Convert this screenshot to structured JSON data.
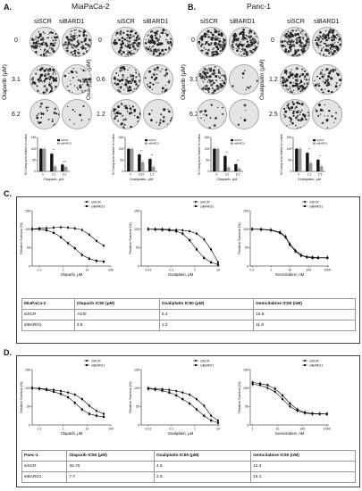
{
  "panelA": {
    "letter": "A.",
    "title": "MiaPaCa-2",
    "col1": "siSCR",
    "col2": "siBARD1",
    "olaparib_axis": "Olaparib (μM)",
    "oxaliplatin_axis": "Oxaliplatin (μM)",
    "olaparib_doses": [
      "0",
      "3.1",
      "6.2"
    ],
    "oxaliplatin_doses": [
      "0",
      "0.6",
      "1.2"
    ]
  },
  "panelB": {
    "letter": "B.",
    "title": "Panc-1",
    "col1": "siSCR",
    "col2": "siBARD1",
    "olaparib_axis": "Olaparib (μM)",
    "oxaliplatin_axis": "Oxaliplatin (μM)",
    "olaparib_doses": [
      "0",
      "3.1",
      "6.2"
    ],
    "oxaliplatin_doses": [
      "0",
      "1.2",
      "2.5"
    ]
  },
  "barcharts": {
    "ylabel": "% Colony area relative to control",
    "legend": [
      "siSCR",
      "siBARD1"
    ],
    "a1_xlabel": "Olaparib, μM",
    "a1_ticks": [
      "0",
      "3.1",
      "6.2"
    ],
    "a1_stars": [
      "",
      "**",
      "n.s"
    ],
    "a2_xlabel": "Oxaliplatin, μM",
    "a2_ticks": [
      "0",
      "0.62",
      "1.2"
    ],
    "a2_stars": [
      "",
      "**",
      "**"
    ],
    "b1_xlabel": "Olaparib, μM",
    "b1_ticks": [
      "0",
      "3.1",
      "6.2"
    ],
    "b1_stars": [
      "",
      "**",
      "**"
    ],
    "b2_xlabel": "Oxaliplatin, μM",
    "b2_ticks": [
      "0",
      "1.2",
      "2.5"
    ],
    "b2_stars": [
      "",
      "**",
      "**"
    ],
    "yticks": [
      "0",
      "50",
      "100",
      "150"
    ]
  },
  "panelC": {
    "letter": "C.",
    "ylabel": "Relative Survival (%)",
    "legend": [
      "siSCR",
      "siBARD1"
    ],
    "x1": "Olaparib, μM",
    "x2": "Oxaliplatin, μM",
    "x3": "Gemcitabine, nM",
    "x1_ticks": [
      "0.1",
      "1",
      "10",
      "100"
    ],
    "x2_ticks": [
      "0.01",
      "0.1",
      "1",
      "10"
    ],
    "x3_ticks": [
      "0.1",
      "1",
      "10",
      "100",
      "1000"
    ],
    "yticks": [
      "0",
      "50",
      "100",
      "150"
    ],
    "table": {
      "headers": [
        "MiaPaCa-2",
        "Olaparib IC50 (μM)",
        "Oxaliplatin IC50 (μM)",
        "Gemcitabine IC50 (nM)"
      ],
      "rows": [
        [
          "siSCR",
          ">100",
          "5.4",
          "10.6"
        ],
        [
          "siBARD1",
          "3.8",
          "1.2",
          "11.8"
        ]
      ]
    }
  },
  "panelD": {
    "letter": "D.",
    "ylabel": "Relative Survival (%)",
    "legend": [
      "siSCR",
      "siBARD1"
    ],
    "x1": "Olaparib, μM",
    "x2": "Oxaliplatin, μM",
    "x3": "Gemcitabine, nM",
    "x1_ticks": [
      "0.1",
      "1",
      "10",
      "100"
    ],
    "x2_ticks": [
      "0.01",
      "0.1",
      "1",
      "10"
    ],
    "x3_ticks": [
      "1",
      "10",
      "100",
      "1000"
    ],
    "yticks": [
      "0",
      "50",
      "100",
      "150"
    ],
    "table": {
      "headers": [
        "Panc-1",
        "Olaparib IC50 (μM)",
        "Oxaliplatin IC50 (μM)",
        "Gemcitabine IC50 (nM)"
      ],
      "rows": [
        [
          "siSCR",
          "36.75",
          "4.5",
          "12.3"
        ],
        [
          "siBARD1",
          "7.7",
          "2.5",
          "16.1"
        ]
      ]
    }
  },
  "chart_data": [
    {
      "type": "bar",
      "categories": [
        "0",
        "3.1",
        "6.2"
      ],
      "xlabel": "Olaparib, μM",
      "ylabel": "% Colony area relative to control",
      "ylim": [
        0,
        150
      ],
      "series": [
        {
          "name": "siSCR",
          "values": [
            100,
            78,
            30
          ]
        },
        {
          "name": "siBARD1",
          "values": [
            100,
            22,
            20
          ]
        }
      ]
    },
    {
      "type": "bar",
      "categories": [
        "0",
        "0.62",
        "1.2"
      ],
      "xlabel": "Oxaliplatin, μM",
      "ylabel": "% Colony area relative to control",
      "ylim": [
        0,
        150
      ],
      "series": [
        {
          "name": "siSCR",
          "values": [
            100,
            75,
            55
          ]
        },
        {
          "name": "siBARD1",
          "values": [
            100,
            40,
            20
          ]
        }
      ]
    },
    {
      "type": "bar",
      "categories": [
        "0",
        "3.1",
        "6.2"
      ],
      "xlabel": "Olaparib, μM",
      "ylabel": "% Colony area relative to control",
      "ylim": [
        0,
        150
      ],
      "series": [
        {
          "name": "siSCR",
          "values": [
            100,
            68,
            32
          ]
        },
        {
          "name": "siBARD1",
          "values": [
            100,
            18,
            12
          ]
        }
      ]
    },
    {
      "type": "bar",
      "categories": [
        "0",
        "1.2",
        "2.5"
      ],
      "xlabel": "Oxaliplatin, μM",
      "ylabel": "% Colony area relative to control",
      "ylim": [
        0,
        150
      ],
      "series": [
        {
          "name": "siSCR",
          "values": [
            100,
            82,
            52
          ]
        },
        {
          "name": "siBARD1",
          "values": [
            100,
            36,
            22
          ]
        }
      ]
    },
    {
      "type": "line",
      "xlabel": "Olaparib, μM",
      "ylabel": "Relative Survival (%)",
      "ylim": [
        0,
        150
      ],
      "xlim": [
        0.05,
        100
      ],
      "series": [
        {
          "name": "siSCR",
          "x": [
            0.05,
            0.1,
            0.2,
            0.4,
            0.8,
            1.6,
            3.1,
            6.2,
            12.5,
            25,
            50
          ],
          "y": [
            100,
            102,
            103,
            104,
            105,
            104,
            102,
            98,
            85,
            68,
            55
          ]
        },
        {
          "name": "siBARD1",
          "x": [
            0.05,
            0.1,
            0.2,
            0.4,
            0.8,
            1.6,
            3.1,
            6.2,
            12.5,
            25,
            50
          ],
          "y": [
            100,
            100,
            97,
            90,
            78,
            62,
            48,
            30,
            20,
            14,
            12
          ]
        }
      ]
    },
    {
      "type": "line",
      "xlabel": "Oxaliplatin, μM",
      "ylabel": "Relative Survival (%)",
      "ylim": [
        0,
        150
      ],
      "xlim": [
        0.005,
        12
      ],
      "series": [
        {
          "name": "siSCR",
          "x": [
            0.01,
            0.02,
            0.04,
            0.08,
            0.16,
            0.3,
            0.6,
            1.2,
            2.5,
            5,
            10
          ],
          "y": [
            100,
            100,
            100,
            99,
            98,
            97,
            94,
            88,
            72,
            45,
            10
          ]
        },
        {
          "name": "siBARD1",
          "x": [
            0.01,
            0.02,
            0.04,
            0.08,
            0.16,
            0.3,
            0.6,
            1.2,
            2.5,
            5,
            10
          ],
          "y": [
            100,
            99,
            98,
            97,
            94,
            88,
            70,
            45,
            22,
            10,
            4
          ]
        }
      ]
    },
    {
      "type": "line",
      "xlabel": "Gemcitabine, nM",
      "ylabel": "Relative Survival (%)",
      "ylim": [
        0,
        150
      ],
      "xlim": [
        0.08,
        1200
      ],
      "series": [
        {
          "name": "siSCR",
          "x": [
            0.1,
            0.3,
            1,
            3,
            6,
            10,
            20,
            40,
            80,
            160,
            320,
            1000
          ],
          "y": [
            100,
            100,
            98,
            92,
            80,
            60,
            42,
            30,
            25,
            24,
            23,
            23
          ]
        },
        {
          "name": "siBARD1",
          "x": [
            0.1,
            0.3,
            1,
            3,
            6,
            10,
            20,
            40,
            80,
            160,
            320,
            1000
          ],
          "y": [
            100,
            99,
            97,
            90,
            78,
            58,
            40,
            28,
            24,
            22,
            22,
            22
          ]
        }
      ]
    },
    {
      "type": "line",
      "xlabel": "Olaparib, μM",
      "ylabel": "Relative Survival (%)",
      "ylim": [
        0,
        150
      ],
      "xlim": [
        0.05,
        100
      ],
      "series": [
        {
          "name": "siSCR",
          "x": [
            0.05,
            0.1,
            0.2,
            0.4,
            0.8,
            1.6,
            3.1,
            6.2,
            12.5,
            25,
            50
          ],
          "y": [
            100,
            99,
            97,
            95,
            92,
            88,
            82,
            70,
            52,
            38,
            30
          ]
        },
        {
          "name": "siBARD1",
          "x": [
            0.05,
            0.1,
            0.2,
            0.4,
            0.8,
            1.6,
            3.1,
            6.2,
            12.5,
            25,
            50
          ],
          "y": [
            100,
            98,
            95,
            90,
            84,
            75,
            60,
            42,
            30,
            25,
            22
          ]
        }
      ]
    },
    {
      "type": "line",
      "xlabel": "Oxaliplatin, μM",
      "ylabel": "Relative Survival (%)",
      "ylim": [
        0,
        150
      ],
      "xlim": [
        0.005,
        12
      ],
      "series": [
        {
          "name": "siSCR",
          "x": [
            0.01,
            0.02,
            0.04,
            0.08,
            0.16,
            0.3,
            0.6,
            1.2,
            2.5,
            5,
            10
          ],
          "y": [
            100,
            98,
            97,
            95,
            92,
            88,
            82,
            70,
            52,
            25,
            12
          ]
        },
        {
          "name": "siBARD1",
          "x": [
            0.01,
            0.02,
            0.04,
            0.08,
            0.16,
            0.3,
            0.6,
            1.2,
            2.5,
            5,
            10
          ],
          "y": [
            98,
            96,
            93,
            88,
            80,
            70,
            58,
            42,
            25,
            12,
            6
          ]
        }
      ]
    },
    {
      "type": "line",
      "xlabel": "Gemcitabine, nM",
      "ylabel": "Relative Survival (%)",
      "ylim": [
        0,
        150
      ],
      "xlim": [
        0.8,
        1200
      ],
      "series": [
        {
          "name": "siSCR",
          "x": [
            1,
            2,
            4,
            8,
            16,
            32,
            64,
            128,
            256,
            512,
            1000
          ],
          "y": [
            110,
            108,
            100,
            90,
            70,
            50,
            38,
            32,
            30,
            30,
            29
          ]
        },
        {
          "name": "siBARD1",
          "x": [
            1,
            2,
            4,
            8,
            16,
            32,
            64,
            128,
            256,
            512,
            1000
          ],
          "y": [
            115,
            112,
            108,
            98,
            80,
            58,
            42,
            34,
            31,
            30,
            30
          ]
        }
      ]
    }
  ]
}
